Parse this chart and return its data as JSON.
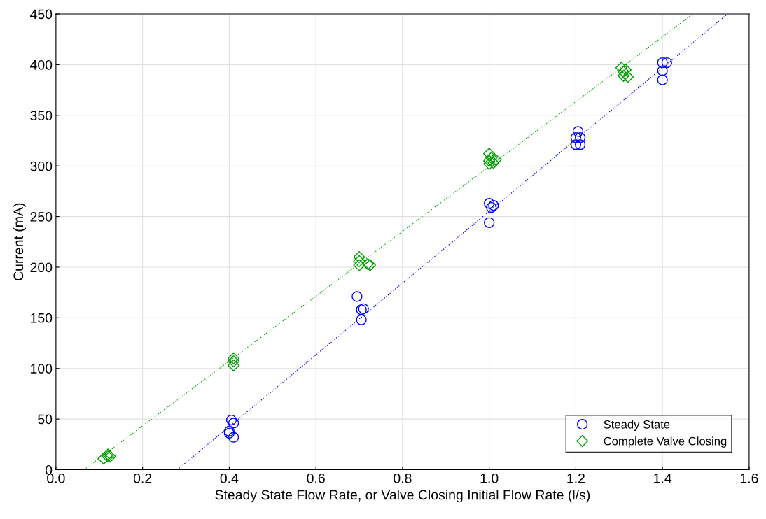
{
  "chart_data": {
    "type": "scatter",
    "xlabel": "Steady State Flow Rate, or Valve Closing Initial Flow Rate (l/s)",
    "ylabel": "Current (mA)",
    "xlim": [
      0,
      1.6
    ],
    "ylim": [
      0,
      450
    ],
    "xticks": [
      {
        "value": 0,
        "label": "0.0"
      },
      0.2,
      0.4,
      0.6,
      0.8,
      {
        "value": 1,
        "label": "1.0"
      },
      1.2,
      1.4,
      1.6
    ],
    "yticks": [
      0,
      50,
      100,
      150,
      200,
      250,
      300,
      350,
      400,
      450
    ],
    "grid": true,
    "legend": "bottom right",
    "series": [
      {
        "name": "Steady State",
        "color": "#0000ff",
        "marker": "circle",
        "x": [
          0.4,
          0.4,
          0.405,
          0.41,
          0.41,
          0.695,
          0.705,
          0.71,
          0.705,
          1.0,
          1.005,
          1.01,
          1.0,
          1.2,
          1.2,
          1.205,
          1.21,
          1.21,
          1.4,
          1.41,
          1.4,
          1.4
        ],
        "values": [
          38,
          36,
          49,
          46,
          32,
          171,
          158,
          159,
          148,
          263,
          259,
          261,
          244,
          321,
          328,
          334,
          328,
          321,
          402,
          402,
          394,
          385
        ]
      },
      {
        "name": "Complete Valve Closing",
        "color": "#00a000",
        "marker": "diamond",
        "x": [
          0.11,
          0.12,
          0.12,
          0.125,
          0.41,
          0.41,
          0.41,
          0.7,
          0.7,
          0.7,
          0.72,
          0.725,
          1.0,
          1.0,
          1.0,
          1.005,
          1.01,
          1.015,
          1.305,
          1.31,
          1.31,
          1.315,
          1.32
        ],
        "values": [
          11,
          15,
          13,
          13,
          110,
          107,
          103,
          210,
          206,
          202,
          203,
          202,
          312,
          305,
          302,
          308,
          303,
          306,
          397,
          393,
          389,
          395,
          388
        ]
      },
      {
        "type": "line",
        "color": "#0000ff",
        "line_style": "dotted",
        "marker": "none",
        "x": [
          0.28,
          1.55
        ],
        "values": [
          0,
          450
        ]
      },
      {
        "type": "line",
        "color": "#00a000",
        "line_style": "dotted",
        "marker": "none",
        "x": [
          0.065,
          1.47
        ],
        "values": [
          0,
          450
        ]
      }
    ]
  }
}
